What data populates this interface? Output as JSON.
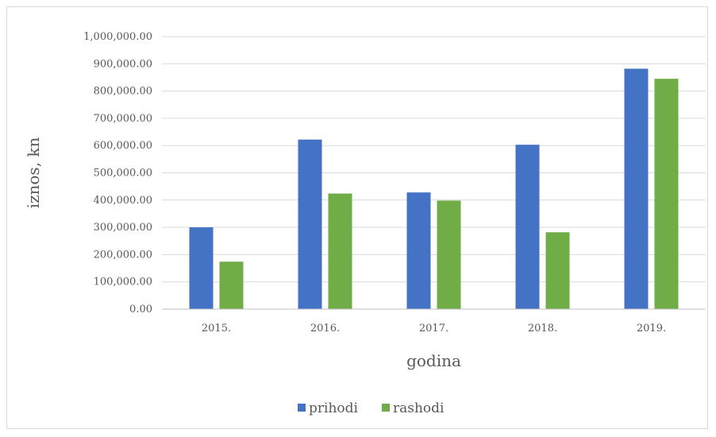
{
  "chart_data": {
    "type": "bar",
    "title": "",
    "xlabel": "godina",
    "ylabel": "iznos, kn",
    "categories": [
      "2015.",
      "2016.",
      "2017.",
      "2018.",
      "2019."
    ],
    "series": [
      {
        "name": "prihodi",
        "color": "#4472c4",
        "values": [
          300000,
          622000,
          428000,
          603000,
          882000
        ]
      },
      {
        "name": "rashodi",
        "color": "#70ad47",
        "values": [
          174000,
          424000,
          398000,
          282000,
          845000
        ]
      }
    ],
    "ylim": [
      0,
      1000000
    ],
    "yticks": [
      "0.00",
      "100,000.00",
      "200,000.00",
      "300,000.00",
      "400,000.00",
      "500,000.00",
      "600,000.00",
      "700,000.00",
      "800,000.00",
      "900,000.00",
      "1,000,000.00"
    ],
    "grid": true,
    "legend_position": "bottom"
  }
}
